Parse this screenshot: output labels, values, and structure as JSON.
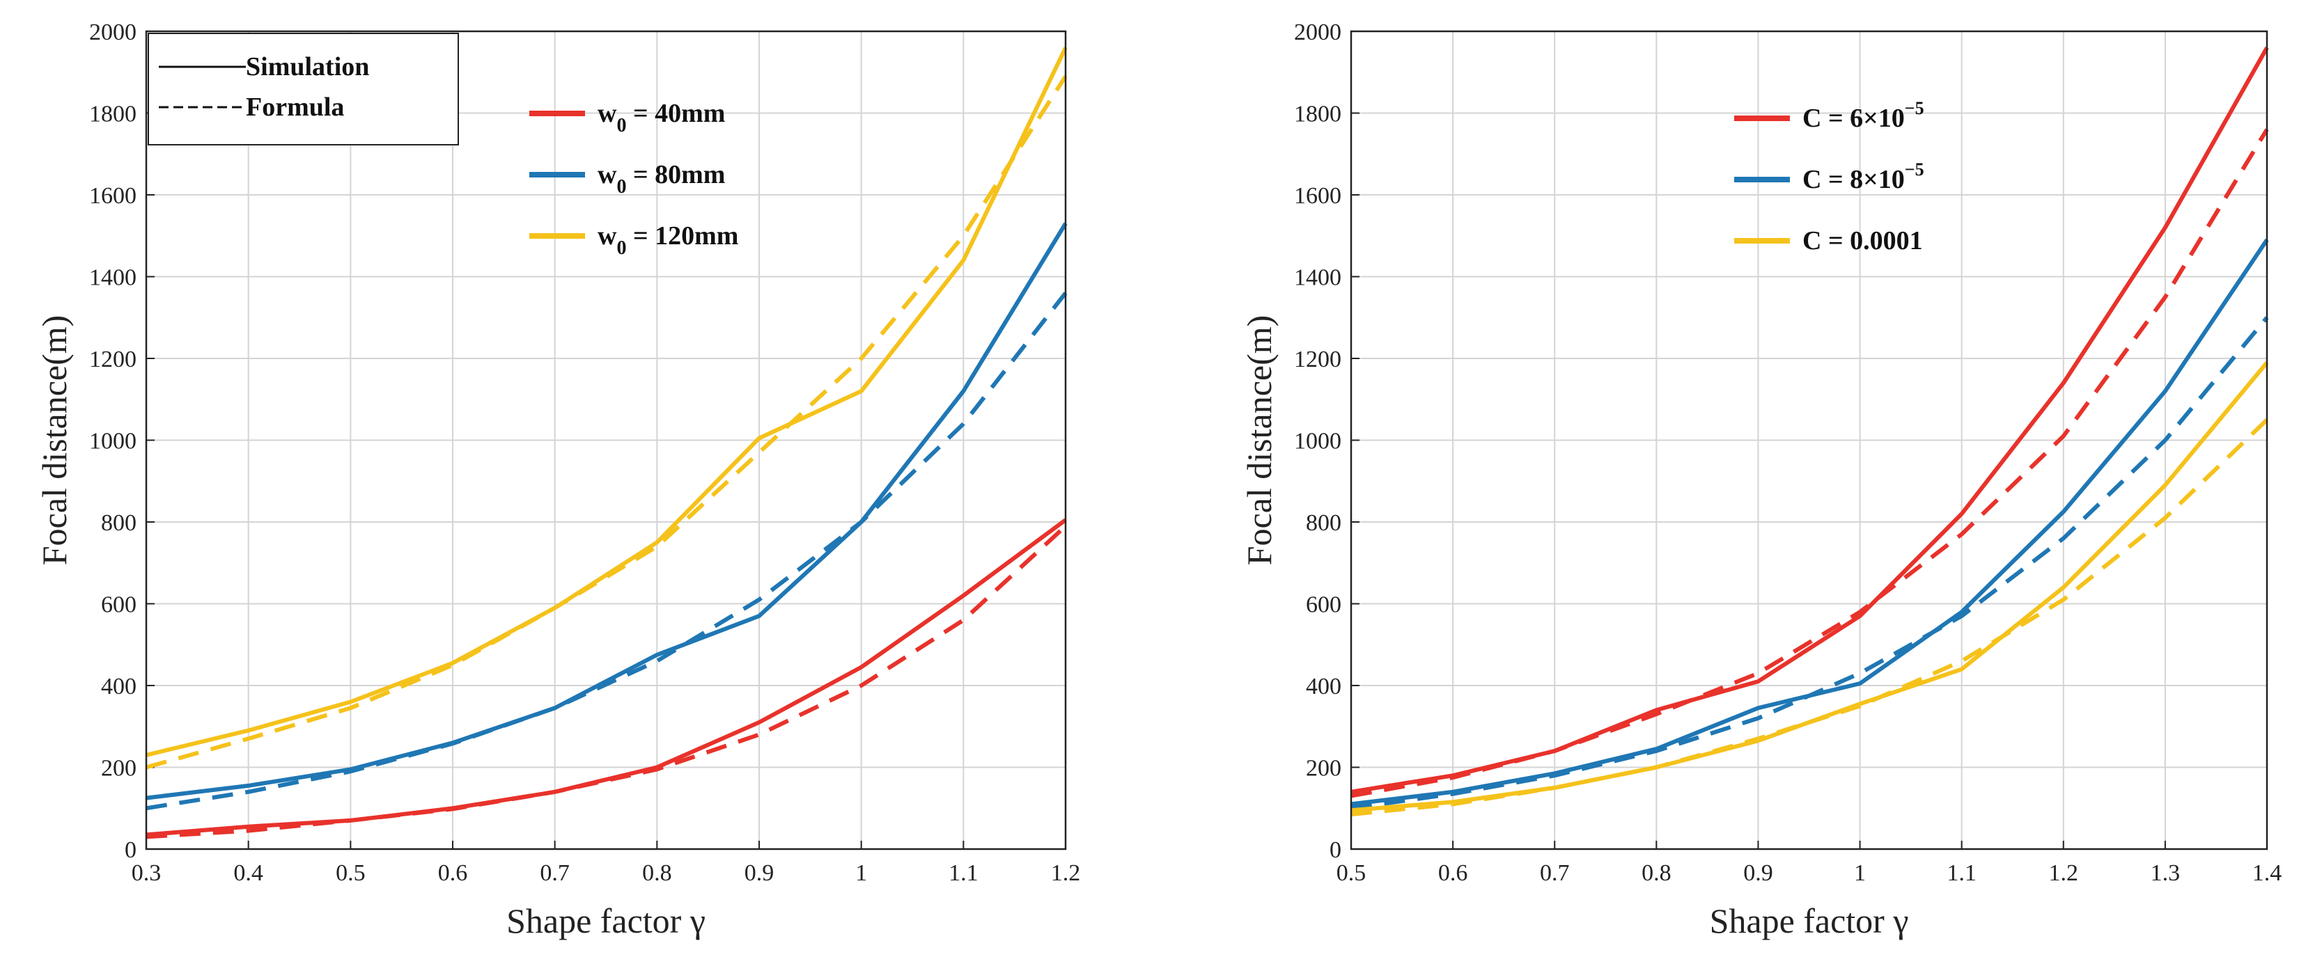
{
  "chart_data": [
    {
      "type": "line",
      "xlabel": "Shape factor γ",
      "ylabel": "Focal distance(m)",
      "xlim": [
        0.3,
        1.2
      ],
      "ylim": [
        0,
        2000
      ],
      "xticks": [
        "0.3",
        "0.4",
        "0.5",
        "0.6",
        "0.7",
        "0.8",
        "0.9",
        "1",
        "1.1",
        "1.2"
      ],
      "yticks": [
        "0",
        "200",
        "400",
        "600",
        "800",
        "1000",
        "1200",
        "1400",
        "1600",
        "1800",
        "2000"
      ],
      "grid": true,
      "style_legend": {
        "position": "top-left",
        "items": [
          {
            "label": "Simulation",
            "dash": "solid"
          },
          {
            "label": "Formula",
            "dash": "dashed"
          }
        ]
      },
      "color_legend": {
        "position": "top-center",
        "items": [
          {
            "base": "w",
            "sub": "0",
            "rest": " = 40mm",
            "color": "#e8322b"
          },
          {
            "base": "w",
            "sub": "0",
            "rest": " = 80mm",
            "color": "#1f77b4"
          },
          {
            "base": "w",
            "sub": "0",
            "rest": " = 120mm",
            "color": "#f5c21b"
          }
        ]
      },
      "x": [
        0.3,
        0.4,
        0.5,
        0.6,
        0.7,
        0.8,
        0.9,
        1.0,
        1.1,
        1.2
      ],
      "series": [
        {
          "name": "w0 = 40mm Simulation",
          "color": "#e8322b",
          "dash": "solid",
          "values": [
            35,
            55,
            70,
            100,
            140,
            200,
            310,
            445,
            620,
            805
          ]
        },
        {
          "name": "w0 = 40mm Formula",
          "color": "#e8322b",
          "dash": "dashed",
          "values": [
            30,
            45,
            70,
            98,
            140,
            195,
            280,
            400,
            560,
            790
          ]
        },
        {
          "name": "w0 = 80mm Simulation",
          "color": "#1f77b4",
          "dash": "solid",
          "values": [
            125,
            155,
            195,
            260,
            345,
            475,
            570,
            800,
            1120,
            1530
          ]
        },
        {
          "name": "w0 = 80mm Formula",
          "color": "#1f77b4",
          "dash": "dashed",
          "values": [
            100,
            140,
            190,
            258,
            345,
            460,
            610,
            800,
            1040,
            1360
          ]
        },
        {
          "name": "w0 = 120mm Simulation",
          "color": "#f5c21b",
          "dash": "solid",
          "values": [
            230,
            290,
            360,
            455,
            590,
            750,
            1005,
            1120,
            1440,
            1960
          ]
        },
        {
          "name": "w0 = 120mm Formula",
          "color": "#f5c21b",
          "dash": "dashed",
          "values": [
            200,
            270,
            345,
            450,
            590,
            740,
            970,
            1200,
            1500,
            1890
          ]
        }
      ]
    },
    {
      "type": "line",
      "xlabel": "Shape factor γ",
      "ylabel": "Focal distance(m)",
      "xlim": [
        0.5,
        1.4
      ],
      "ylim": [
        0,
        2000
      ],
      "xticks": [
        "0.5",
        "0.6",
        "0.7",
        "0.8",
        "0.9",
        "1",
        "1.1",
        "1.2",
        "1.3",
        "1.4"
      ],
      "yticks": [
        "0",
        "200",
        "400",
        "600",
        "800",
        "1000",
        "1200",
        "1400",
        "1600",
        "1800",
        "2000"
      ],
      "grid": true,
      "color_legend": {
        "position": "top-center",
        "items": [
          {
            "base": "C = 6×10",
            "sup": "−5",
            "color": "#e8322b"
          },
          {
            "base": "C = 8×10",
            "sup": "−5",
            "color": "#1f77b4"
          },
          {
            "base": "C = 0.0001",
            "color": "#f5c21b"
          }
        ]
      },
      "x": [
        0.5,
        0.6,
        0.7,
        0.8,
        0.9,
        1.0,
        1.1,
        1.2,
        1.3,
        1.4
      ],
      "series": [
        {
          "name": "C = 6×10^-5 Simulation",
          "color": "#e8322b",
          "dash": "solid",
          "values": [
            140,
            180,
            240,
            340,
            410,
            570,
            820,
            1140,
            1520,
            1960
          ]
        },
        {
          "name": "C = 6×10^-5 Formula",
          "color": "#e8322b",
          "dash": "dashed",
          "values": [
            130,
            175,
            240,
            330,
            430,
            580,
            770,
            1010,
            1350,
            1760
          ]
        },
        {
          "name": "C = 8×10^-5 Simulation",
          "color": "#1f77b4",
          "dash": "solid",
          "values": [
            110,
            140,
            185,
            245,
            345,
            405,
            580,
            825,
            1120,
            1490
          ]
        },
        {
          "name": "C = 8×10^-5 Formula",
          "color": "#1f77b4",
          "dash": "dashed",
          "values": [
            100,
            135,
            180,
            240,
            320,
            430,
            570,
            760,
            1000,
            1300
          ]
        },
        {
          "name": "C = 0.0001 Simulation",
          "color": "#f5c21b",
          "dash": "solid",
          "values": [
            95,
            115,
            150,
            200,
            265,
            355,
            440,
            640,
            890,
            1190
          ]
        },
        {
          "name": "C = 0.0001 Formula",
          "color": "#f5c21b",
          "dash": "dashed",
          "values": [
            85,
            110,
            150,
            200,
            270,
            350,
            460,
            610,
            810,
            1050
          ]
        }
      ]
    }
  ]
}
